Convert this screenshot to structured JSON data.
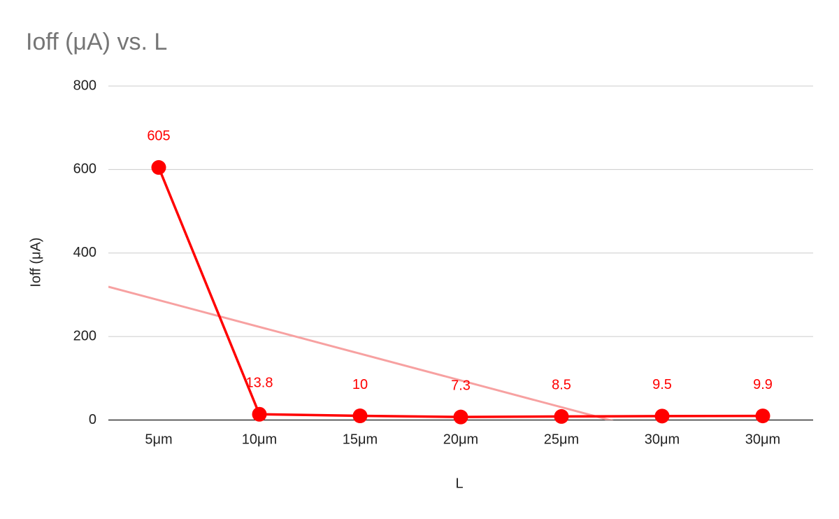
{
  "chart_data": {
    "type": "line",
    "title": "Ioff (μA) vs. L",
    "x_label": "L",
    "y_label": "Ioff (μA)",
    "categories": [
      "5μm",
      "10μm",
      "15μm",
      "20μm",
      "25μm",
      "30μm",
      "30μm"
    ],
    "values": [
      605,
      13.8,
      10,
      7.3,
      8.5,
      9.5,
      9.9
    ],
    "color": "#ff0000",
    "ylim": [
      0,
      800
    ],
    "yticks": [
      0,
      200,
      400,
      600,
      800
    ],
    "grid": true,
    "trendline": {
      "kind": "linear",
      "color": "#f7a1a1"
    }
  }
}
